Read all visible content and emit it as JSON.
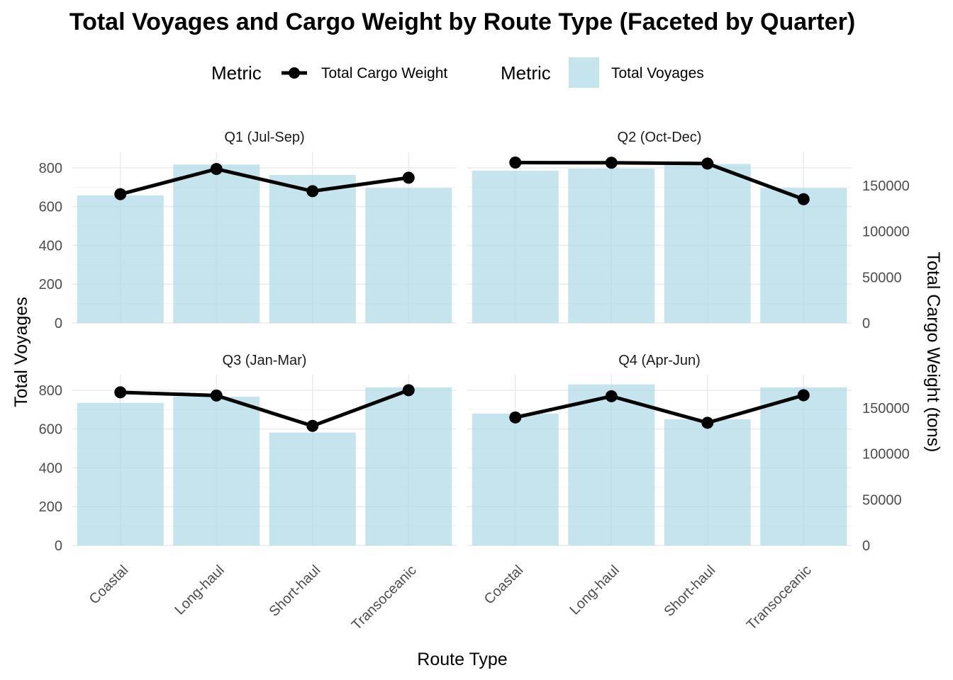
{
  "chart_data": {
    "type": "bar",
    "title": "Total Voyages and Cargo Weight by Route Type (Faceted by Quarter)",
    "xlabel": "Route Type",
    "ylabel": "Total Voyages",
    "y2label": "Total Cargo Weight (tons)",
    "legend": {
      "placement": "top",
      "groups": [
        {
          "title": "Metric",
          "label": "Total Cargo Weight",
          "kind": "line",
          "color": "#000000"
        },
        {
          "title": "Metric",
          "label": "Total Voyages",
          "kind": "bar",
          "color": "#add8e6"
        }
      ]
    },
    "categories": [
      "Coastal",
      "Long-haul",
      "Short-haul",
      "Transoceanic"
    ],
    "ylim": [
      0,
      880
    ],
    "y_ticks": [
      0,
      200,
      400,
      600,
      800
    ],
    "y2_ticks": [
      0,
      50000,
      100000,
      150000
    ],
    "y2_ticks_label": [
      "0",
      "50000",
      "100000",
      "150000"
    ],
    "y2_scale": 211.6,
    "grid": true,
    "bar_color": "#add8e6",
    "line_color": "#000000",
    "facets": [
      {
        "label": "Q1 (Jul-Sep)",
        "voyages": [
          658,
          817,
          763,
          697
        ],
        "cargo_weight": [
          140500,
          168000,
          143800,
          158500
        ]
      },
      {
        "label": "Q2 (Oct-Dec)",
        "voyages": [
          785,
          796,
          820,
          697
        ],
        "cargo_weight": [
          175000,
          174800,
          173900,
          135000
        ]
      },
      {
        "label": "Q3 (Jan-Mar)",
        "voyages": [
          735,
          767,
          582,
          815
        ],
        "cargo_weight": [
          167000,
          163500,
          130400,
          169300
        ]
      },
      {
        "label": "Q4 (Apr-Jun)",
        "voyages": [
          680,
          830,
          650,
          815
        ],
        "cargo_weight": [
          139600,
          162700,
          133800,
          163800
        ]
      }
    ]
  }
}
